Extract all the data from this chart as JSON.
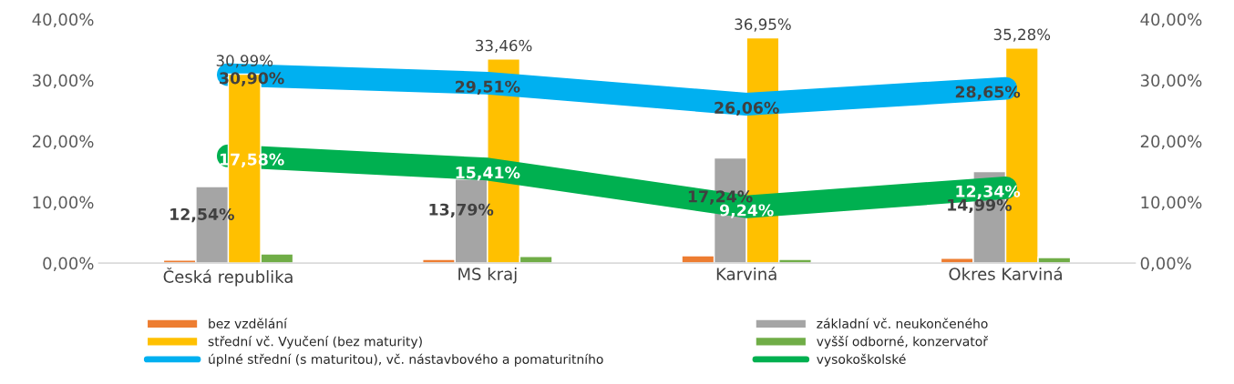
{
  "chart_data": {
    "type": "bar",
    "categories": [
      "Česká republika",
      "MS kraj",
      "Karviná",
      "Okres Karviná"
    ],
    "series": [
      {
        "name": "bez vzdělání",
        "color": "#ed7d31",
        "values": [
          0.5,
          0.6,
          1.2,
          0.8
        ]
      },
      {
        "name": "základní vč. neukončeného",
        "color": "#a5a5a5",
        "values": [
          12.54,
          13.79,
          17.24,
          14.99
        ],
        "value_labels": [
          "12,54%",
          "13,79%",
          "17,24%",
          "14,99%"
        ]
      },
      {
        "name": "střední vč. Vyučení (bez maturity)",
        "color": "#ffc000",
        "values": [
          30.99,
          33.46,
          36.95,
          35.28
        ],
        "value_labels": [
          "30,99%",
          "33,46%",
          "36,95%",
          "35,28%"
        ]
      },
      {
        "name": "vyšší odborné, konzervatoř",
        "color": "#70ad47",
        "values": [
          1.5,
          1.1,
          0.6,
          0.9
        ]
      },
      {
        "name": "úplné střední (s maturitou), vč. nástavbového a pomaturitního",
        "type": "line",
        "color": "#00b0f0",
        "values": [
          30.9,
          29.51,
          26.06,
          28.65
        ],
        "value_labels": [
          "30,90%",
          "29,51%",
          "26,06%",
          "28,65%"
        ]
      },
      {
        "name": "vysokoškolské",
        "type": "line",
        "color": "#00b050",
        "values": [
          17.58,
          15.41,
          9.24,
          12.34
        ],
        "value_labels": [
          "17,58%",
          "15,41%",
          "9,24%",
          "12,34%"
        ]
      }
    ],
    "ylim": [
      0,
      40
    ],
    "yticks": [
      {
        "value": 0,
        "label": "0,00%"
      },
      {
        "value": 10,
        "label": "10,00%"
      },
      {
        "value": 20,
        "label": "20,00%"
      },
      {
        "value": 30,
        "label": "30,00%"
      },
      {
        "value": 40,
        "label": "40,00%"
      }
    ],
    "y2lim": [
      0,
      40
    ],
    "y2ticks": [
      {
        "value": 0,
        "label": "0,00%"
      },
      {
        "value": 10,
        "label": "10,00%"
      },
      {
        "value": 20,
        "label": "20,00%"
      },
      {
        "value": 30,
        "label": "30,00%"
      },
      {
        "value": 40,
        "label": "40,00%"
      }
    ],
    "legend": "bottom",
    "grid": false
  }
}
